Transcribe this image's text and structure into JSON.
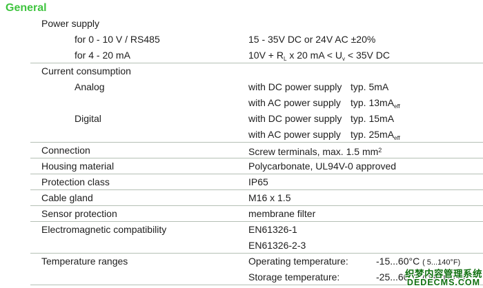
{
  "heading": "General",
  "colors": {
    "heading_green": "#3fc43f",
    "rule_line": "#b4bfb4",
    "body_text": "#1d1d1d",
    "watermark_green": "#107010"
  },
  "watermark": {
    "line1": "织梦内容管理系统",
    "line2": "DEDECMS.COM"
  },
  "rows": [
    {
      "indent": 0,
      "label": "Power supply",
      "underline": false,
      "value_parts": []
    },
    {
      "indent": 1,
      "label": "for 0 - 10 V / RS485",
      "underline": false,
      "value_parts": [
        {
          "t": "15 - 35V DC or 24V AC ±20%",
          "s": "n"
        }
      ]
    },
    {
      "indent": 1,
      "label": "for 4 - 20 mA",
      "underline": true,
      "value_parts": [
        {
          "t": "10V + R",
          "s": "n"
        },
        {
          "t": "L",
          "s": "sub"
        },
        {
          "t": " x 20 mA < U",
          "s": "n"
        },
        {
          "t": "v",
          "s": "sub"
        },
        {
          "t": " < 35V DC",
          "s": "n"
        }
      ]
    },
    {
      "indent": 0,
      "label": "Current consumption",
      "underline": false,
      "value_parts": []
    },
    {
      "indent": 1,
      "label": "Analog",
      "underline": false,
      "value_parts": [
        {
          "t": "with DC power supply",
          "s": "col"
        },
        {
          "t": "typ. 5mA",
          "s": "n"
        }
      ]
    },
    {
      "indent": 1,
      "label": "",
      "underline": false,
      "value_parts": [
        {
          "t": "with AC power supply",
          "s": "col"
        },
        {
          "t": "typ. 13mA",
          "s": "n"
        },
        {
          "t": "eff",
          "s": "sub"
        }
      ]
    },
    {
      "indent": 1,
      "label": "Digital",
      "underline": false,
      "value_parts": [
        {
          "t": "with DC power supply",
          "s": "col"
        },
        {
          "t": "typ. 15mA",
          "s": "n"
        }
      ]
    },
    {
      "indent": 1,
      "label": "",
      "underline": true,
      "value_parts": [
        {
          "t": "with AC power supply",
          "s": "col"
        },
        {
          "t": "typ. 25mA",
          "s": "n"
        },
        {
          "t": "eff",
          "s": "sub"
        }
      ]
    },
    {
      "indent": 0,
      "label": "Connection",
      "underline": true,
      "value_parts": [
        {
          "t": "Screw terminals, max. 1.5 mm",
          "s": "n"
        },
        {
          "t": "2",
          "s": "sup"
        }
      ]
    },
    {
      "indent": 0,
      "label": "Housing material",
      "underline": true,
      "value_parts": [
        {
          "t": "Polycarbonate, UL94V-0 approved",
          "s": "n"
        }
      ]
    },
    {
      "indent": 0,
      "label": "Protection class",
      "underline": true,
      "value_parts": [
        {
          "t": "IP65",
          "s": "n"
        }
      ]
    },
    {
      "indent": 0,
      "label": "Cable gland",
      "underline": true,
      "value_parts": [
        {
          "t": "M16 x 1.5",
          "s": "n"
        }
      ]
    },
    {
      "indent": 0,
      "label": "Sensor protection",
      "underline": true,
      "value_parts": [
        {
          "t": "membrane filter",
          "s": "n"
        }
      ]
    },
    {
      "indent": 0,
      "label": "Electromagnetic compatibility",
      "underline": false,
      "value_parts": [
        {
          "t": "EN61326-1",
          "s": "n"
        }
      ]
    },
    {
      "indent": 0,
      "label": "",
      "underline": true,
      "value_parts": [
        {
          "t": "EN61326-2-3",
          "s": "n"
        }
      ]
    },
    {
      "indent": 0,
      "label": "Temperature ranges",
      "underline": false,
      "value_parts": [
        {
          "t": "Operating temperature:",
          "s": "tcol"
        },
        {
          "t": "-15...60°C ",
          "s": "n"
        },
        {
          "t": "( 5...140°F)",
          "s": "small"
        }
      ]
    },
    {
      "indent": 0,
      "label": "",
      "underline": true,
      "value_parts": [
        {
          "t": "Storage temperature:",
          "s": "tcol"
        },
        {
          "t": "-25...60°C ",
          "s": "n"
        },
        {
          "t": "(-13...140°F)",
          "s": "small"
        }
      ]
    }
  ]
}
